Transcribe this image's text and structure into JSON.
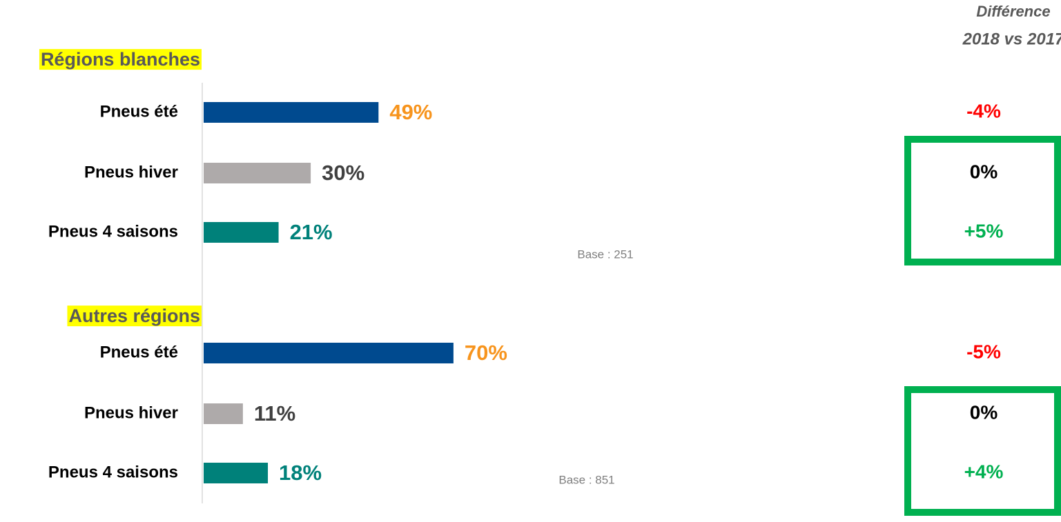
{
  "header": {
    "title": "Différence",
    "subtitle": "2018 vs 2017"
  },
  "chart_data": [
    {
      "type": "bar",
      "title": "Régions blanches",
      "categories": [
        "Pneus été",
        "Pneus hiver",
        "Pneus 4 saisons"
      ],
      "values": [
        49,
        30,
        21
      ],
      "value_labels": [
        "49%",
        "30%",
        "21%"
      ],
      "colors": [
        "#004a8f",
        "#aeaaaa",
        "#00817a"
      ],
      "value_label_colors": [
        "#f7941d",
        "#404040",
        "#00817a"
      ],
      "xlim": [
        0,
        100
      ],
      "base": "Base : 251",
      "difference_values": [
        -4,
        0,
        5
      ],
      "difference_labels": [
        "-4%",
        "0%",
        "+5%"
      ],
      "difference_colors": [
        "#ff0000",
        "#000000",
        "#00b050"
      ]
    },
    {
      "type": "bar",
      "title": "Autres régions",
      "categories": [
        "Pneus été",
        "Pneus hiver",
        "Pneus 4 saisons"
      ],
      "values": [
        70,
        11,
        18
      ],
      "value_labels": [
        "70%",
        "11%",
        "18%"
      ],
      "colors": [
        "#004a8f",
        "#aeaaaa",
        "#00817a"
      ],
      "value_label_colors": [
        "#f7941d",
        "#404040",
        "#00817a"
      ],
      "xlim": [
        0,
        100
      ],
      "base": "Base : 851",
      "difference_values": [
        -5,
        0,
        4
      ],
      "difference_labels": [
        "-5%",
        "0%",
        "+4%"
      ],
      "difference_colors": [
        "#ff0000",
        "#000000",
        "#00b050"
      ]
    }
  ]
}
